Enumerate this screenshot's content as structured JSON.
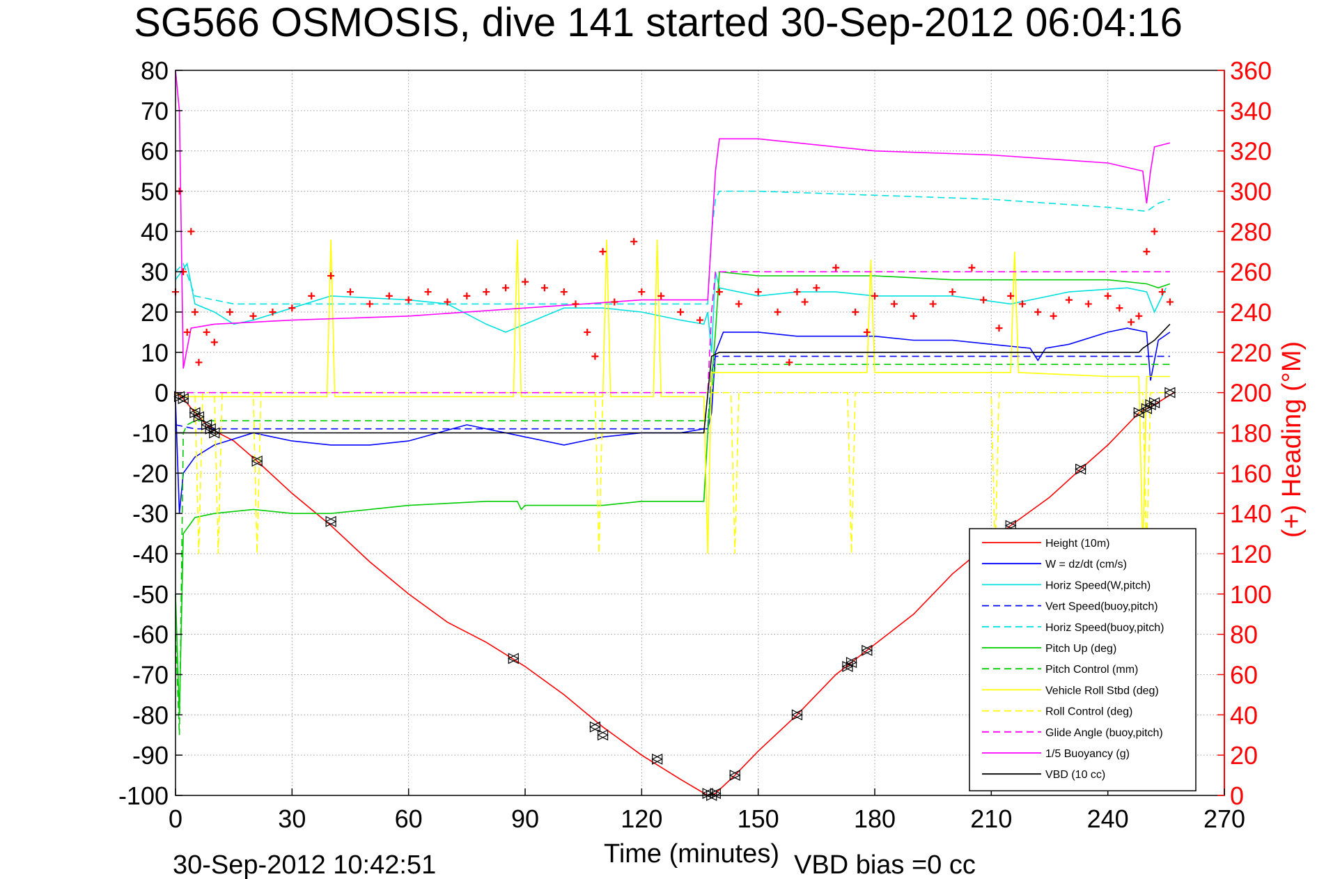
{
  "chart_data": {
    "type": "line",
    "title": "SG566 OSMOSIS, dive 141 started 30-Sep-2012 06:04:16",
    "xlabel": "Time (minutes)",
    "ylabel_right": "(+) Heading (°M)",
    "footer_left": "30-Sep-2012 10:42:51",
    "footer_right": "VBD bias =0 cc",
    "xlim": [
      0,
      270
    ],
    "ylim": [
      -100,
      80
    ],
    "ylim_right": [
      0,
      360
    ],
    "x_ticks": [
      0,
      30,
      60,
      90,
      120,
      150,
      180,
      210,
      240,
      270
    ],
    "y_ticks": [
      -100,
      -90,
      -80,
      -70,
      -60,
      -50,
      -40,
      -30,
      -20,
      -10,
      0,
      10,
      20,
      30,
      40,
      50,
      60,
      70,
      80
    ],
    "y_ticks_right": [
      0,
      20,
      40,
      60,
      80,
      100,
      120,
      140,
      160,
      180,
      200,
      220,
      240,
      260,
      280,
      300,
      320,
      340,
      360
    ],
    "grid": true,
    "legend_position": "bottom-right",
    "series": [
      {
        "name": "Height (10m)",
        "color": "#ff0000",
        "style": "solid",
        "x": [
          0,
          2,
          5,
          8,
          11,
          15,
          21,
          30,
          40,
          50,
          60,
          70,
          80,
          90,
          100,
          110,
          120,
          130,
          137,
          139,
          144,
          150,
          160,
          170,
          178,
          190,
          200,
          215,
          225,
          233,
          240,
          248,
          252,
          257
        ],
        "y": [
          0,
          -1.5,
          -5,
          -8,
          -10,
          -12,
          -17,
          -25,
          -33,
          -42,
          -50,
          -57,
          -62,
          -68,
          -75,
          -83,
          -90,
          -96,
          -100,
          -99.5,
          -95,
          -89,
          -80,
          -70,
          -64,
          -55,
          -45,
          -33,
          -26,
          -19,
          -13,
          -5,
          -3,
          0
        ]
      },
      {
        "name": "W = dz/dt (cm/s)",
        "color": "#0000ff",
        "style": "solid",
        "x": [
          0,
          1,
          2,
          5,
          10,
          20,
          30,
          40,
          50,
          60,
          75,
          90,
          100,
          105,
          110,
          120,
          130,
          136,
          137,
          138,
          139,
          141,
          150,
          160,
          170,
          180,
          190,
          200,
          210,
          220,
          222,
          224,
          230,
          240,
          245,
          250,
          251,
          253,
          256
        ],
        "y": [
          -2,
          -30,
          -20,
          -16,
          -13,
          -10,
          -12,
          -13,
          -13,
          -12,
          -8,
          -11,
          -13,
          -12,
          -11,
          -10,
          -10,
          -9,
          -9,
          -5,
          10,
          15,
          15,
          14,
          14,
          14,
          13,
          13,
          12,
          11,
          8,
          11,
          12,
          15,
          16,
          15,
          3,
          13,
          15
        ]
      },
      {
        "name": "Horiz Speed(W,pitch)",
        "color": "#00e0e0",
        "style": "solid",
        "x": [
          0,
          3,
          5,
          10,
          15,
          20,
          30,
          40,
          60,
          70,
          80,
          85,
          90,
          95,
          100,
          110,
          120,
          130,
          136,
          137,
          138,
          139,
          140,
          150,
          160,
          170,
          180,
          200,
          215,
          230,
          245,
          250,
          252,
          255
        ],
        "y": [
          28,
          32,
          22,
          20,
          17,
          18,
          21,
          24,
          23,
          22,
          17,
          15,
          17,
          19,
          21,
          21,
          20,
          18,
          17,
          20,
          10,
          30,
          26,
          24,
          25,
          25,
          24,
          24,
          22,
          25,
          26,
          25,
          20,
          26
        ]
      },
      {
        "name": "Vert Speed(buoy,pitch)",
        "color": "#0000ff",
        "style": "dashed",
        "x": [
          0,
          5,
          15,
          40,
          80,
          120,
          137,
          138,
          139,
          150,
          200,
          250,
          256
        ],
        "y": [
          -8,
          -9,
          -9,
          -9,
          -9,
          -9,
          -9,
          5,
          9,
          9,
          9,
          9,
          9
        ]
      },
      {
        "name": "Horiz Speed(buoy,pitch)",
        "color": "#00e0e0",
        "style": "dashed",
        "x": [
          0,
          2,
          5,
          15,
          40,
          80,
          120,
          137,
          138,
          139,
          140,
          150,
          180,
          210,
          240,
          250,
          253,
          256
        ],
        "y": [
          30,
          32,
          24,
          22,
          22,
          22,
          22,
          22,
          40,
          48,
          50,
          50,
          49,
          48,
          46,
          45,
          47,
          48
        ]
      },
      {
        "name": "Pitch Up (deg)",
        "color": "#00cc00",
        "style": "solid",
        "x": [
          0,
          1,
          2,
          5,
          10,
          20,
          30,
          40,
          60,
          80,
          88,
          89,
          90,
          100,
          110,
          120,
          130,
          136,
          137,
          139,
          140,
          150,
          160,
          180,
          200,
          220,
          240,
          250,
          253,
          256
        ],
        "y": [
          -50,
          -80,
          -35,
          -31,
          -30,
          -29,
          -30,
          -30,
          -28,
          -27,
          -27,
          -29,
          -28,
          -28,
          -28,
          -27,
          -27,
          -27,
          -10,
          15,
          30,
          29,
          29,
          29,
          28,
          28,
          28,
          27,
          26,
          27
        ]
      },
      {
        "name": "Pitch Control (mm)",
        "color": "#00cc00",
        "style": "dashed",
        "x": [
          0,
          1,
          2,
          3,
          5,
          20,
          40,
          80,
          120,
          137,
          138,
          139,
          150,
          200,
          250,
          256
        ],
        "y": [
          -60,
          -85,
          -10,
          -8,
          -7,
          -7,
          -7,
          -7,
          -7,
          -7,
          0,
          7,
          7,
          7,
          7,
          7
        ]
      },
      {
        "name": "Vehicle Roll Stbd (deg)",
        "color": "#ffff00",
        "style": "solid",
        "x": [
          0,
          2,
          5,
          10,
          20,
          30,
          39,
          40,
          41,
          60,
          87,
          88,
          89,
          110,
          111,
          112,
          123,
          124,
          125,
          136,
          137,
          138,
          140,
          150,
          170,
          178,
          179,
          180,
          200,
          215,
          216,
          217,
          240,
          248,
          249,
          250,
          256
        ],
        "y": [
          0,
          -1,
          -1,
          -1,
          -1,
          -1,
          -1,
          38,
          -1,
          -1,
          -1,
          38,
          -1,
          -1,
          38,
          -1,
          -1,
          38,
          -1,
          -1,
          -40,
          5,
          5,
          5,
          5,
          5,
          33,
          5,
          5,
          5,
          35,
          5,
          4,
          4,
          -40,
          4,
          4
        ]
      },
      {
        "name": "Roll Control (deg)",
        "color": "#ffff00",
        "style": "dashed",
        "x": [
          0,
          5,
          6,
          7,
          8,
          10,
          11,
          12,
          20,
          21,
          22,
          40,
          80,
          108,
          109,
          110,
          120,
          136,
          137,
          140,
          143,
          144,
          145,
          160,
          173,
          174,
          175,
          200,
          210,
          211,
          212,
          230,
          240,
          249,
          250,
          251,
          256
        ],
        "y": [
          0,
          0,
          -40,
          0,
          0,
          0,
          -40,
          0,
          0,
          -40,
          0,
          0,
          0,
          0,
          -40,
          0,
          0,
          0,
          0,
          0,
          0,
          -40,
          0,
          0,
          0,
          -40,
          0,
          0,
          0,
          -40,
          0,
          0,
          0,
          0,
          -40,
          0,
          0
        ]
      },
      {
        "name": "Glide Angle (buoy,pitch)",
        "color": "#ff00ff",
        "style": "dashed",
        "x": [
          0,
          10,
          40,
          80,
          120,
          137,
          138,
          139,
          160,
          200,
          240,
          256
        ],
        "y": [
          0,
          0,
          0,
          0,
          0,
          0,
          20,
          30,
          30,
          30,
          30,
          30
        ]
      },
      {
        "name": "1/5 Buoyancy (g)",
        "color": "#ff00ff",
        "style": "solid",
        "x": [
          0,
          1,
          2,
          4,
          10,
          30,
          60,
          90,
          120,
          137,
          139,
          140,
          150,
          180,
          210,
          240,
          249,
          250,
          251,
          252,
          256
        ],
        "y": [
          80,
          70,
          6,
          16,
          17,
          18,
          19,
          21,
          23,
          23,
          55,
          63,
          63,
          60,
          59,
          57,
          55,
          47,
          55,
          61,
          62
        ]
      },
      {
        "name": "VBD (10 cc)",
        "color": "#000000",
        "style": "solid",
        "x": [
          0,
          20,
          136,
          138,
          140,
          150,
          200,
          248,
          249,
          252,
          256
        ],
        "y": [
          -10,
          -10,
          -10,
          9,
          10,
          10,
          10,
          10,
          11,
          13,
          17
        ]
      }
    ],
    "heading_series": {
      "name": "(+) Heading",
      "color": "#ff0000",
      "marker": "+",
      "axis": "right",
      "x": [
        0,
        1,
        2,
        3,
        4,
        5,
        6,
        8,
        10,
        14,
        20,
        25,
        30,
        35,
        40,
        45,
        50,
        55,
        60,
        65,
        70,
        75,
        80,
        85,
        90,
        95,
        100,
        103,
        106,
        108,
        110,
        113,
        118,
        120,
        125,
        130,
        135,
        140,
        145,
        150,
        155,
        158,
        160,
        162,
        165,
        170,
        175,
        178,
        180,
        185,
        190,
        195,
        200,
        205,
        208,
        212,
        215,
        218,
        222,
        226,
        230,
        235,
        240,
        243,
        246,
        248,
        250,
        252,
        254,
        256
      ],
      "y": [
        250,
        300,
        260,
        230,
        280,
        240,
        215,
        230,
        225,
        240,
        238,
        240,
        242,
        248,
        258,
        250,
        244,
        248,
        246,
        250,
        245,
        248,
        250,
        252,
        255,
        252,
        250,
        244,
        230,
        218,
        270,
        245,
        275,
        250,
        248,
        240,
        236,
        250,
        244,
        250,
        240,
        215,
        250,
        245,
        252,
        262,
        240,
        230,
        248,
        244,
        238,
        244,
        250,
        262,
        246,
        232,
        248,
        244,
        240,
        238,
        246,
        244,
        248,
        242,
        235,
        238,
        270,
        280,
        250,
        245
      ]
    },
    "markers": {
      "symbol": "triangles",
      "color": "#000000",
      "x": [
        1,
        2,
        5,
        6,
        8,
        9,
        10,
        21,
        40,
        87,
        108,
        110,
        124,
        137,
        138,
        139,
        144,
        160,
        173,
        174,
        178,
        215,
        233,
        248,
        250,
        251,
        252,
        256
      ],
      "y": [
        -1,
        -1.5,
        -5,
        -6,
        -8,
        -9,
        -10,
        -17,
        -32,
        -66,
        -83,
        -85,
        -91,
        -99.5,
        -100,
        -99.5,
        -95,
        -80,
        -68,
        -67,
        -64,
        -33,
        -19,
        -5,
        -4,
        -3,
        -2.5,
        0
      ]
    }
  }
}
